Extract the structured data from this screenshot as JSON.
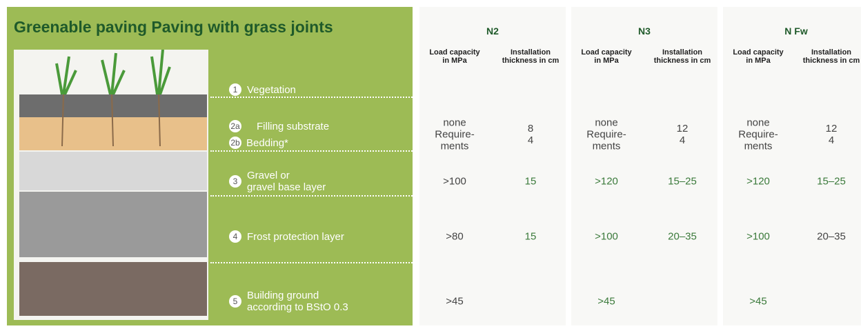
{
  "header": {
    "title": "Greenable paving Paving with grass joints"
  },
  "columns": [
    {
      "name": "N2",
      "subcolumns": [
        "Load capacity\nin MPa",
        "Installation\nthickness in cm"
      ]
    },
    {
      "name": "N3",
      "subcolumns": [
        "Load capacity\nin MPa",
        "Installation\nthickness in cm"
      ]
    },
    {
      "name": "N Fw",
      "subcolumns": [
        "Load capacity\nin MPa",
        "Installation\nthickness in cm"
      ]
    }
  ],
  "layers": [
    {
      "numbers": [
        "1"
      ],
      "labels": [
        "Vegetation"
      ],
      "cells": [
        "",
        "",
        "",
        "",
        "",
        ""
      ],
      "colors": [
        "#444",
        "#444",
        "#444",
        "#444",
        "#444",
        "#444"
      ]
    },
    {
      "numbers": [
        "2a",
        "2b"
      ],
      "labels": [
        "Filling substrate",
        "Bedding*"
      ],
      "cells": [
        "none\nRequire-\nments",
        "8\n4",
        "none\nRequire-\nments",
        "12\n4",
        "none\nRequire-\nments",
        "12\n4"
      ],
      "colors": [
        "#444",
        "#444",
        "#444",
        "#444",
        "#444",
        "#444"
      ]
    },
    {
      "numbers": [
        "3"
      ],
      "labels": [
        "Gravel or\ngravel base layer"
      ],
      "cells": [
        ">100",
        "15",
        ">120",
        "15–25",
        ">120",
        "15–25"
      ],
      "colors": [
        "#444",
        "#3b7a3b",
        "#3b7a3b",
        "#3b7a3b",
        "#3b7a3b",
        "#3b7a3b"
      ]
    },
    {
      "numbers": [
        "4"
      ],
      "labels": [
        "Frost protection layer"
      ],
      "cells": [
        ">80",
        "15",
        ">100",
        "20–35",
        ">100",
        "20–35"
      ],
      "colors": [
        "#444",
        "#3b7a3b",
        "#3b7a3b",
        "#3b7a3b",
        "#3b7a3b",
        "#444"
      ]
    },
    {
      "numbers": [
        "5"
      ],
      "labels": [
        "Building ground\naccording to BStO 0.3"
      ],
      "cells": [
        ">45",
        "",
        ">45",
        "",
        ">45",
        ""
      ],
      "colors": [
        "#444",
        "#444",
        "#3b7a3b",
        "#444",
        "#3b7a3b",
        "#444"
      ]
    }
  ]
}
